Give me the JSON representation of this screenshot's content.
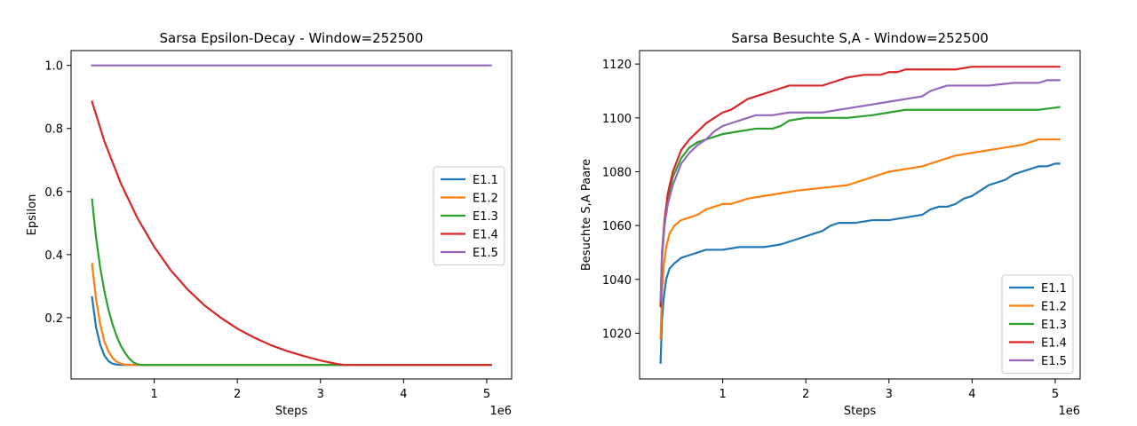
{
  "chart_data": [
    {
      "type": "line",
      "title": "Sarsa Epsilon-Decay - Window=252500",
      "xlabel": "Steps",
      "ylabel": "Epsilon",
      "x_offset_label": "1e6",
      "xlim": [
        0,
        5300000
      ],
      "ylim": [
        0.0055,
        1.047
      ],
      "xticks": [
        1,
        2,
        3,
        4,
        5
      ],
      "yticks": [
        0.2,
        0.4,
        0.6,
        0.8,
        1.0
      ],
      "ytick_labels": [
        "0.2",
        "0.4",
        "0.6",
        "0.8",
        "1.0"
      ],
      "legend_position": "center-right",
      "series": [
        {
          "name": "E1.1",
          "color": "#1f77b4",
          "x": [
            252500,
            300000,
            350000,
            400000,
            450000,
            500000,
            550000,
            600000,
            800000,
            1500000,
            3000000,
            5050000
          ],
          "y": [
            0.265,
            0.17,
            0.115,
            0.08,
            0.062,
            0.054,
            0.051,
            0.05,
            0.05,
            0.05,
            0.05,
            0.05
          ]
        },
        {
          "name": "E1.2",
          "color": "#ff7f0e",
          "x": [
            252500,
            300000,
            350000,
            400000,
            450000,
            500000,
            550000,
            600000,
            650000,
            700000,
            1000000,
            3000000,
            5050000
          ],
          "y": [
            0.37,
            0.26,
            0.18,
            0.125,
            0.093,
            0.072,
            0.06,
            0.054,
            0.051,
            0.05,
            0.05,
            0.05,
            0.05
          ]
        },
        {
          "name": "E1.3",
          "color": "#2ca02c",
          "x": [
            252500,
            300000,
            350000,
            400000,
            450000,
            500000,
            550000,
            600000,
            650000,
            700000,
            750000,
            800000,
            850000,
            1500000,
            3000000,
            5050000
          ],
          "y": [
            0.575,
            0.455,
            0.36,
            0.285,
            0.225,
            0.178,
            0.14,
            0.11,
            0.088,
            0.07,
            0.058,
            0.052,
            0.05,
            0.05,
            0.05,
            0.05
          ]
        },
        {
          "name": "E1.4",
          "color": "#d62728",
          "x": [
            252500,
            400000,
            600000,
            800000,
            1000000,
            1200000,
            1400000,
            1600000,
            1800000,
            2000000,
            2200000,
            2400000,
            2600000,
            2800000,
            3000000,
            3200000,
            3300000,
            3500000,
            4000000,
            5050000
          ],
          "y": [
            0.885,
            0.76,
            0.625,
            0.515,
            0.425,
            0.35,
            0.29,
            0.24,
            0.2,
            0.165,
            0.137,
            0.113,
            0.094,
            0.078,
            0.064,
            0.053,
            0.05,
            0.05,
            0.05,
            0.05
          ]
        },
        {
          "name": "E1.5",
          "color": "#9467bd",
          "x": [
            252500,
            5050000
          ],
          "y": [
            1.0,
            1.0
          ]
        }
      ]
    },
    {
      "type": "line",
      "title": "Sarsa Besuchte S,A - Window=252500",
      "xlabel": "Steps",
      "ylabel": "Besuchte S,A Paare",
      "x_offset_label": "1e6",
      "xlim": [
        0,
        5300000
      ],
      "ylim": [
        1003,
        1125
      ],
      "xticks": [
        1,
        2,
        3,
        4,
        5
      ],
      "yticks": [
        1020,
        1040,
        1060,
        1080,
        1100,
        1120
      ],
      "legend_position": "lower-right",
      "series": [
        {
          "name": "E1.1",
          "color": "#1f77b4",
          "x": [
            252500,
            270000,
            290000,
            320000,
            360000,
            420000,
            500000,
            600000,
            700000,
            800000,
            1000000,
            1200000,
            1500000,
            1700000,
            1800000,
            2000000,
            2100000,
            2200000,
            2300000,
            2400000,
            2600000,
            2800000,
            3000000,
            3200000,
            3400000,
            3500000,
            3600000,
            3700000,
            3800000,
            3900000,
            4000000,
            4100000,
            4200000,
            4300000,
            4400000,
            4500000,
            4600000,
            4700000,
            4800000,
            4900000,
            5000000,
            5050000
          ],
          "y": [
            1009,
            1025,
            1033,
            1040,
            1044,
            1046,
            1048,
            1049,
            1050,
            1051,
            1051,
            1052,
            1052,
            1053,
            1054,
            1056,
            1057,
            1058,
            1060,
            1061,
            1061,
            1062,
            1062,
            1063,
            1064,
            1066,
            1067,
            1067,
            1068,
            1070,
            1071,
            1073,
            1075,
            1076,
            1077,
            1079,
            1080,
            1081,
            1082,
            1082,
            1083,
            1083
          ]
        },
        {
          "name": "E1.2",
          "color": "#ff7f0e",
          "x": [
            252500,
            270000,
            290000,
            320000,
            360000,
            420000,
            500000,
            600000,
            700000,
            800000,
            900000,
            1000000,
            1100000,
            1200000,
            1300000,
            1500000,
            1700000,
            1900000,
            2200000,
            2500000,
            2600000,
            2800000,
            3000000,
            3200000,
            3400000,
            3600000,
            3800000,
            4000000,
            4200000,
            4400000,
            4600000,
            4800000,
            5050000
          ],
          "y": [
            1018,
            1036,
            1045,
            1052,
            1057,
            1060,
            1062,
            1063,
            1064,
            1066,
            1067,
            1068,
            1068,
            1069,
            1070,
            1071,
            1072,
            1073,
            1074,
            1075,
            1076,
            1078,
            1080,
            1081,
            1082,
            1084,
            1086,
            1087,
            1088,
            1089,
            1090,
            1092,
            1092
          ]
        },
        {
          "name": "E1.3",
          "color": "#2ca02c",
          "x": [
            252500,
            270000,
            300000,
            340000,
            400000,
            500000,
            600000,
            700000,
            800000,
            900000,
            1000000,
            1200000,
            1400000,
            1600000,
            1700000,
            1800000,
            2000000,
            2300000,
            2500000,
            2800000,
            3000000,
            3200000,
            3500000,
            4000000,
            4500000,
            4800000,
            5050000
          ],
          "y": [
            1030,
            1048,
            1060,
            1070,
            1078,
            1085,
            1089,
            1091,
            1092,
            1093,
            1094,
            1095,
            1096,
            1096,
            1097,
            1099,
            1100,
            1100,
            1100,
            1101,
            1102,
            1103,
            1103,
            1103,
            1103,
            1103,
            1104
          ]
        },
        {
          "name": "E1.4",
          "color": "#d62728",
          "x": [
            252500,
            270000,
            300000,
            340000,
            400000,
            500000,
            600000,
            700000,
            800000,
            900000,
            1000000,
            1100000,
            1200000,
            1300000,
            1400000,
            1500000,
            1600000,
            1700000,
            1800000,
            2000000,
            2200000,
            2300000,
            2400000,
            2500000,
            2700000,
            2900000,
            3000000,
            3100000,
            3200000,
            3500000,
            3800000,
            4000000,
            4500000,
            5050000
          ],
          "y": [
            1030,
            1050,
            1062,
            1072,
            1080,
            1088,
            1092,
            1095,
            1098,
            1100,
            1102,
            1103,
            1105,
            1107,
            1108,
            1109,
            1110,
            1111,
            1112,
            1112,
            1112,
            1113,
            1114,
            1115,
            1116,
            1116,
            1117,
            1117,
            1118,
            1118,
            1118,
            1119,
            1119,
            1119
          ]
        },
        {
          "name": "E1.5",
          "color": "#9467bd",
          "x": [
            252500,
            270000,
            300000,
            340000,
            400000,
            500000,
            600000,
            700000,
            800000,
            900000,
            1000000,
            1100000,
            1200000,
            1300000,
            1400000,
            1600000,
            1800000,
            2000000,
            2200000,
            2400000,
            2600000,
            2800000,
            3000000,
            3200000,
            3400000,
            3500000,
            3700000,
            4000000,
            4200000,
            4500000,
            4800000,
            4900000,
            5050000
          ],
          "y": [
            1032,
            1050,
            1060,
            1068,
            1075,
            1083,
            1087,
            1090,
            1092,
            1095,
            1097,
            1098,
            1099,
            1100,
            1101,
            1101,
            1102,
            1102,
            1102,
            1103,
            1104,
            1105,
            1106,
            1107,
            1108,
            1110,
            1112,
            1112,
            1112,
            1113,
            1113,
            1114,
            1114
          ]
        }
      ]
    }
  ]
}
